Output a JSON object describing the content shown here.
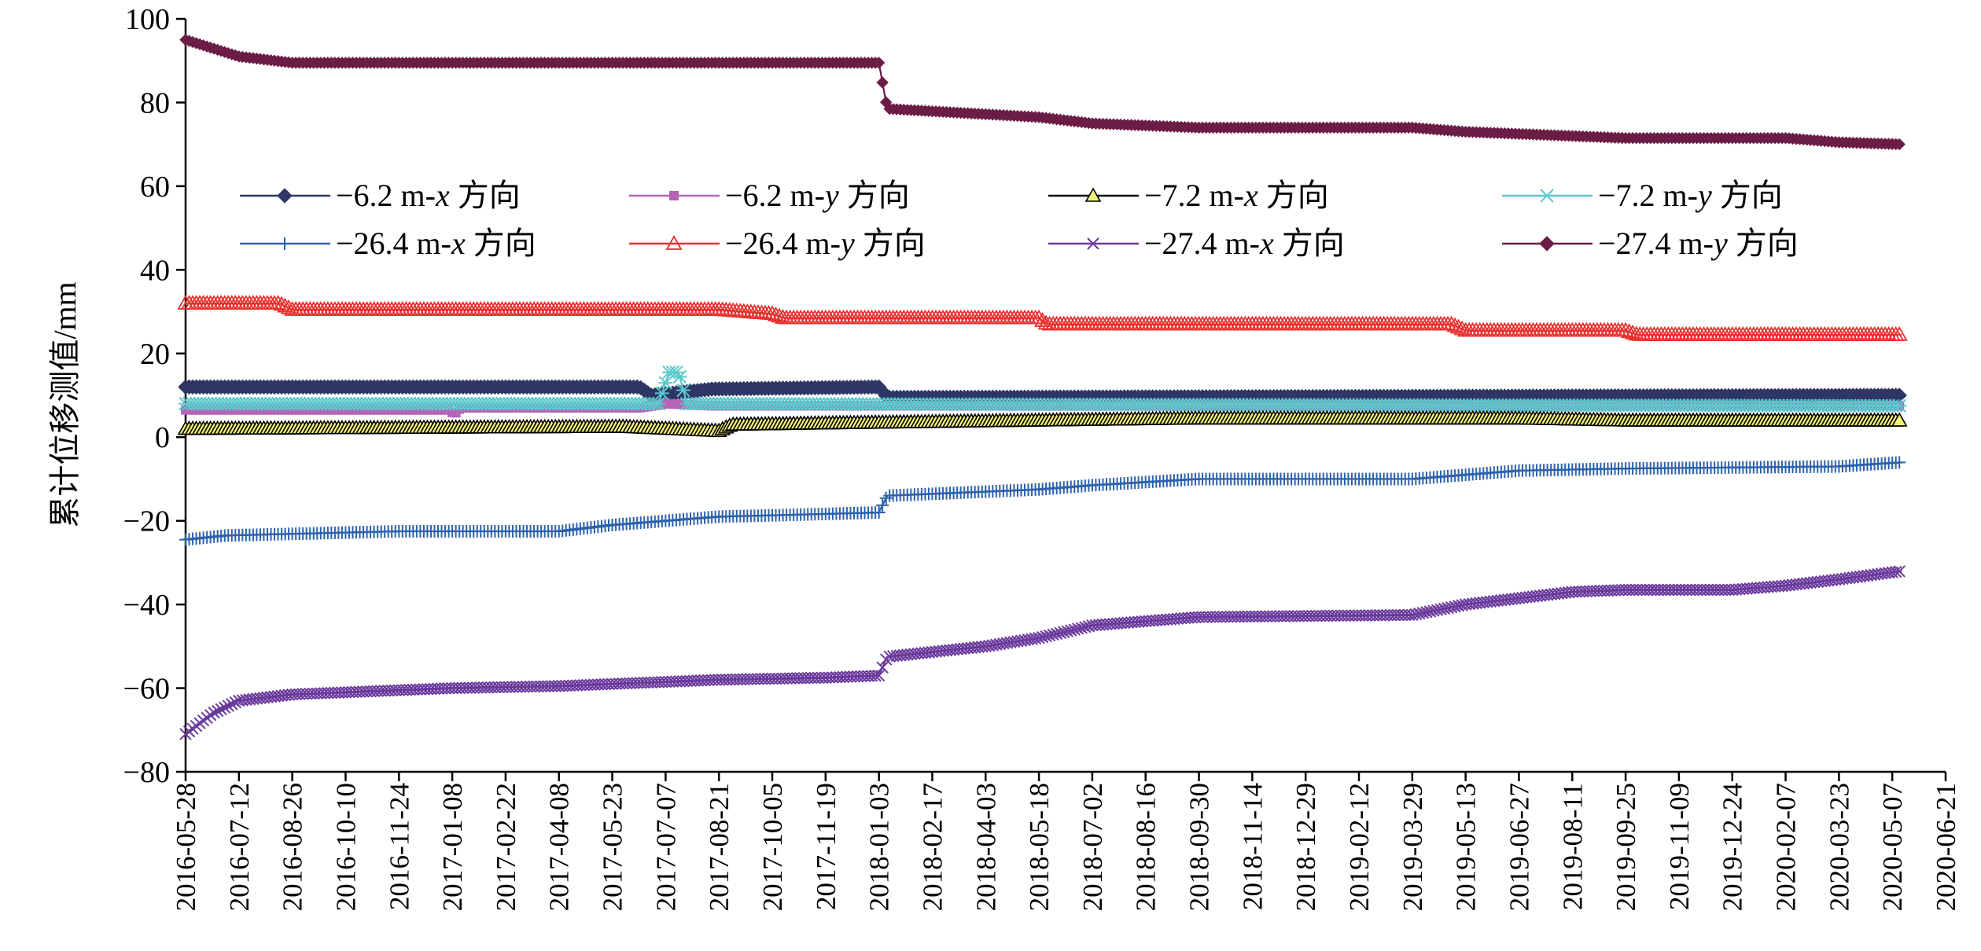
{
  "chart_data": {
    "type": "line",
    "title": "",
    "xlabel": "",
    "ylabel": "累计位移测值/mm",
    "x_type": "date",
    "xlim": [
      "2016-05-28",
      "2020-06-21"
    ],
    "ylim": [
      -80,
      100
    ],
    "yticks": [
      -80,
      -60,
      -40,
      -20,
      0,
      20,
      40,
      60,
      80,
      100
    ],
    "xtick_labels": [
      "2016-05-28",
      "2016-07-12",
      "2016-08-26",
      "2016-10-10",
      "2016-11-24",
      "2017-01-08",
      "2017-02-22",
      "2017-04-08",
      "2017-05-23",
      "2017-07-07",
      "2017-08-21",
      "2017-10-05",
      "2017-11-19",
      "2018-01-03",
      "2018-02-17",
      "2018-04-03",
      "2018-05-18",
      "2018-07-02",
      "2018-08-16",
      "2018-09-30",
      "2018-11-14",
      "2018-12-29",
      "2019-02-12",
      "2019-03-29",
      "2019-05-13",
      "2019-06-27",
      "2019-08-11",
      "2019-09-25",
      "2019-11-09",
      "2019-12-24",
      "2020-02-07",
      "2020-03-23",
      "2020-05-07",
      "2020-06-21"
    ],
    "grid": false,
    "legend_position": "top, inside plot, 4 columns",
    "series": [
      {
        "name": "−6.2 m-x 方向",
        "label_parts": [
          "−6.2 m-",
          "x",
          " 方向"
        ],
        "color": "#2e3665",
        "marker": "diamond",
        "points": [
          [
            "2016-05-28",
            12
          ],
          [
            "2017-06-15",
            12
          ],
          [
            "2017-06-25",
            10
          ],
          [
            "2017-08-15",
            11.5
          ],
          [
            "2018-01-03",
            12
          ],
          [
            "2018-01-10",
            9.5
          ],
          [
            "2020-05-15",
            10
          ]
        ]
      },
      {
        "name": "−6.2 m-y 方向",
        "label_parts": [
          "−6.2 m-",
          "y",
          " 方向"
        ],
        "color": "#b564b8",
        "marker": "square",
        "points": [
          [
            "2016-05-28",
            6.5
          ],
          [
            "2017-01-05",
            6.5
          ],
          [
            "2017-01-10",
            5.5
          ],
          [
            "2017-01-15",
            7
          ],
          [
            "2017-06-15",
            7
          ],
          [
            "2017-07-07",
            8
          ],
          [
            "2017-08-15",
            7.5
          ],
          [
            "2020-05-15",
            7.5
          ]
        ]
      },
      {
        "name": "−7.2 m-x 方向",
        "label_parts": [
          "−7.2 m-",
          "x",
          " 方向"
        ],
        "color": "#000000",
        "marker": "triangle",
        "marker_fill": "#f2f07a",
        "points": [
          [
            "2016-05-28",
            2
          ],
          [
            "2017-06-01",
            2.5
          ],
          [
            "2017-08-21",
            1.5
          ],
          [
            "2017-09-01",
            3
          ],
          [
            "2018-01-03",
            3.5
          ],
          [
            "2018-09-30",
            4.5
          ],
          [
            "2019-06-27",
            4.5
          ],
          [
            "2019-09-25",
            4
          ],
          [
            "2020-05-15",
            4
          ]
        ]
      },
      {
        "name": "−7.2 m-y 方向",
        "label_parts": [
          "−7.2 m-",
          "y",
          " 方向"
        ],
        "color": "#5cc8cc",
        "marker": "asterisk",
        "points": [
          [
            "2016-05-28",
            8
          ],
          [
            "2017-07-01",
            8
          ],
          [
            "2017-07-10",
            15.5
          ],
          [
            "2017-07-18",
            15.5
          ],
          [
            "2017-07-25",
            8
          ],
          [
            "2020-05-15",
            7.5
          ]
        ]
      },
      {
        "name": "−26.4 m-x 方向",
        "label_parts": [
          "−26.4 m-",
          "x",
          " 方向"
        ],
        "color": "#2d62aa",
        "marker": "plus",
        "points": [
          [
            "2016-05-28",
            -24.5
          ],
          [
            "2016-07-01",
            -23.5
          ],
          [
            "2016-11-24",
            -22.5
          ],
          [
            "2017-04-08",
            -22.5
          ],
          [
            "2017-05-23",
            -21
          ],
          [
            "2017-07-07",
            -20
          ],
          [
            "2017-08-21",
            -19
          ],
          [
            "2017-11-01",
            -18.5
          ],
          [
            "2018-01-03",
            -18
          ],
          [
            "2018-01-10",
            -14
          ],
          [
            "2018-05-18",
            -12.5
          ],
          [
            "2018-07-02",
            -11.5
          ],
          [
            "2018-09-30",
            -10
          ],
          [
            "2019-03-29",
            -10
          ],
          [
            "2019-05-13",
            -9
          ],
          [
            "2019-06-27",
            -8
          ],
          [
            "2019-09-25",
            -7.5
          ],
          [
            "2020-03-23",
            -7
          ],
          [
            "2020-05-15",
            -6
          ]
        ]
      },
      {
        "name": "−26.4 m-y 方向",
        "label_parts": [
          "−26.4 m-",
          "y",
          " 方向"
        ],
        "color": "#e8312f",
        "marker": "triangle-open",
        "points": [
          [
            "2016-05-28",
            32
          ],
          [
            "2016-08-15",
            32
          ],
          [
            "2016-08-26",
            30.5
          ],
          [
            "2017-06-01",
            30.5
          ],
          [
            "2017-08-21",
            30.5
          ],
          [
            "2017-10-05",
            29.5
          ],
          [
            "2017-10-15",
            28.5
          ],
          [
            "2018-05-18",
            28.5
          ],
          [
            "2018-05-25",
            27
          ],
          [
            "2019-05-01",
            27
          ],
          [
            "2019-05-13",
            25.5
          ],
          [
            "2019-09-25",
            25.5
          ],
          [
            "2019-10-05",
            24.5
          ],
          [
            "2020-05-15",
            24.5
          ]
        ]
      },
      {
        "name": "−27.4 m-x 方向",
        "label_parts": [
          "−27.4 m-",
          "x",
          " 方向"
        ],
        "color": "#6a3a9c",
        "marker": "x",
        "points": [
          [
            "2016-05-28",
            -71
          ],
          [
            "2016-06-20",
            -66
          ],
          [
            "2016-07-12",
            -63
          ],
          [
            "2016-08-26",
            -61.5
          ],
          [
            "2016-10-10",
            -61
          ],
          [
            "2017-01-08",
            -60
          ],
          [
            "2017-04-08",
            -59.5
          ],
          [
            "2017-08-21",
            -58
          ],
          [
            "2017-11-19",
            -57.5
          ],
          [
            "2018-01-03",
            -57
          ],
          [
            "2018-01-10",
            -52.5
          ],
          [
            "2018-04-03",
            -50
          ],
          [
            "2018-05-18",
            -48
          ],
          [
            "2018-07-02",
            -45
          ],
          [
            "2018-09-30",
            -43
          ],
          [
            "2019-03-29",
            -42.5
          ],
          [
            "2019-05-13",
            -40
          ],
          [
            "2019-06-27",
            -38.5
          ],
          [
            "2019-08-11",
            -37
          ],
          [
            "2019-09-25",
            -36.5
          ],
          [
            "2019-12-24",
            -36.5
          ],
          [
            "2020-02-07",
            -35.5
          ],
          [
            "2020-03-23",
            -34
          ],
          [
            "2020-05-15",
            -32
          ]
        ]
      },
      {
        "name": "−27.4 m-y 方向",
        "label_parts": [
          "−27.4 m-",
          "y",
          " 方向"
        ],
        "color": "#6b1d45",
        "marker": "diamond-small",
        "points": [
          [
            "2016-05-28",
            95
          ],
          [
            "2016-07-12",
            91
          ],
          [
            "2016-08-26",
            89.5
          ],
          [
            "2017-04-08",
            89.5
          ],
          [
            "2017-05-23",
            89.5
          ],
          [
            "2018-01-03",
            89.5
          ],
          [
            "2018-01-10",
            78.5
          ],
          [
            "2018-05-18",
            76.5
          ],
          [
            "2018-07-02",
            75
          ],
          [
            "2018-09-30",
            74
          ],
          [
            "2019-03-29",
            74
          ],
          [
            "2019-05-13",
            73
          ],
          [
            "2019-09-25",
            71.5
          ],
          [
            "2020-02-07",
            71.5
          ],
          [
            "2020-03-23",
            70.5
          ],
          [
            "2020-05-15",
            70
          ]
        ]
      }
    ]
  }
}
